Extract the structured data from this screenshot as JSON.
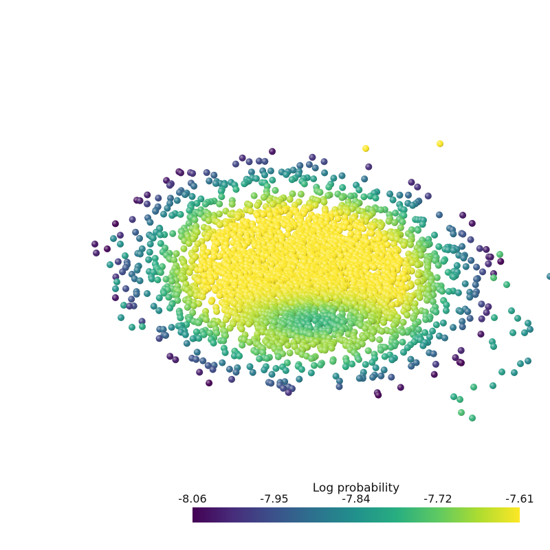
{
  "chart_data": {
    "type": "scatter",
    "description_kind": "3d point cloud rendered as shaded spheres colored by value",
    "colormap": "viridis",
    "colorbar": {
      "title": "Log probability",
      "min": -8.06,
      "max": -7.61,
      "tick_labels": [
        "-8.06",
        "-7.95",
        "-7.84",
        "-7.72",
        "-7.61"
      ]
    },
    "cloud": {
      "point_count_estimate": 6000,
      "shape": "ellipsoid, yellow (high) in core, green/teal/purple (low) at fringes"
    }
  }
}
